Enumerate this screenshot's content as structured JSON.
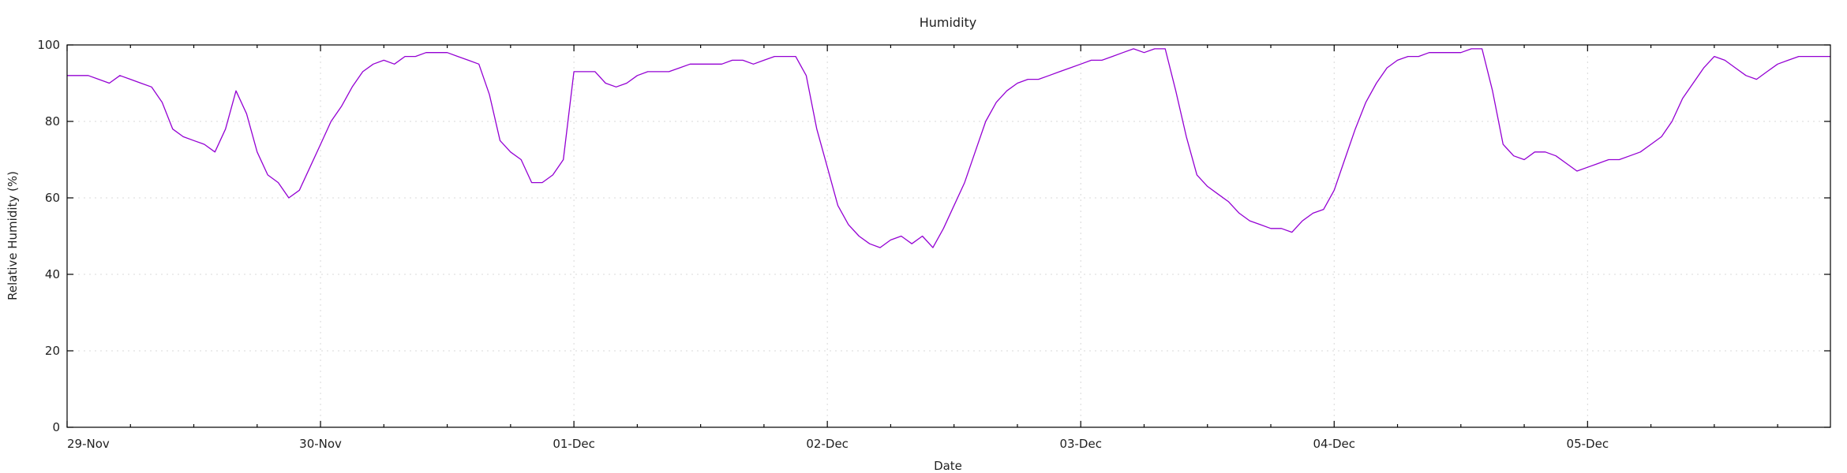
{
  "chart_data": {
    "type": "line",
    "title": "Humidity",
    "xlabel": "Date",
    "ylabel": "Relative Humidity (%)",
    "grid": true,
    "legend": "none",
    "line_color": "#9400d3",
    "ylim": [
      0,
      100
    ],
    "yticks": [
      0,
      20,
      40,
      60,
      80,
      100
    ],
    "xlim": [
      "29-Nov 00:00",
      "05-Dec 23:00"
    ],
    "xticks": [
      "29-Nov",
      "30-Nov",
      "01-Dec",
      "02-Dec",
      "03-Dec",
      "04-Dec",
      "05-Dec"
    ],
    "series": [
      {
        "x": [
          "29-Nov 00:00",
          "29-Nov 01:00",
          "29-Nov 02:00",
          "29-Nov 03:00",
          "29-Nov 04:00",
          "29-Nov 05:00",
          "29-Nov 06:00",
          "29-Nov 07:00",
          "29-Nov 08:00",
          "29-Nov 09:00",
          "29-Nov 10:00",
          "29-Nov 11:00",
          "29-Nov 12:00",
          "29-Nov 13:00",
          "29-Nov 14:00",
          "29-Nov 15:00",
          "29-Nov 16:00",
          "29-Nov 17:00",
          "29-Nov 18:00",
          "29-Nov 19:00",
          "29-Nov 20:00",
          "29-Nov 21:00",
          "29-Nov 22:00",
          "29-Nov 23:00",
          "30-Nov 00:00",
          "30-Nov 01:00",
          "30-Nov 02:00",
          "30-Nov 03:00",
          "30-Nov 04:00",
          "30-Nov 05:00",
          "30-Nov 06:00",
          "30-Nov 07:00",
          "30-Nov 08:00",
          "30-Nov 09:00",
          "30-Nov 10:00",
          "30-Nov 11:00",
          "30-Nov 12:00",
          "30-Nov 13:00",
          "30-Nov 14:00",
          "30-Nov 15:00",
          "30-Nov 16:00",
          "30-Nov 17:00",
          "30-Nov 18:00",
          "30-Nov 19:00",
          "30-Nov 20:00",
          "30-Nov 21:00",
          "30-Nov 22:00",
          "30-Nov 23:00",
          "01-Dec 00:00",
          "01-Dec 01:00",
          "01-Dec 02:00",
          "01-Dec 03:00",
          "01-Dec 04:00",
          "01-Dec 05:00",
          "01-Dec 06:00",
          "01-Dec 07:00",
          "01-Dec 08:00",
          "01-Dec 09:00",
          "01-Dec 10:00",
          "01-Dec 11:00",
          "01-Dec 12:00",
          "01-Dec 13:00",
          "01-Dec 14:00",
          "01-Dec 15:00",
          "01-Dec 16:00",
          "01-Dec 17:00",
          "01-Dec 18:00",
          "01-Dec 19:00",
          "01-Dec 20:00",
          "01-Dec 21:00",
          "01-Dec 22:00",
          "01-Dec 23:00",
          "02-Dec 00:00",
          "02-Dec 01:00",
          "02-Dec 02:00",
          "02-Dec 03:00",
          "02-Dec 04:00",
          "02-Dec 05:00",
          "02-Dec 06:00",
          "02-Dec 07:00",
          "02-Dec 08:00",
          "02-Dec 09:00",
          "02-Dec 10:00",
          "02-Dec 11:00",
          "02-Dec 12:00",
          "02-Dec 13:00",
          "02-Dec 14:00",
          "02-Dec 15:00",
          "02-Dec 16:00",
          "02-Dec 17:00",
          "02-Dec 18:00",
          "02-Dec 19:00",
          "02-Dec 20:00",
          "02-Dec 21:00",
          "02-Dec 22:00",
          "02-Dec 23:00",
          "03-Dec 00:00",
          "03-Dec 01:00",
          "03-Dec 02:00",
          "03-Dec 03:00",
          "03-Dec 04:00",
          "03-Dec 05:00",
          "03-Dec 06:00",
          "03-Dec 07:00",
          "03-Dec 08:00",
          "03-Dec 09:00",
          "03-Dec 10:00",
          "03-Dec 11:00",
          "03-Dec 12:00",
          "03-Dec 13:00",
          "03-Dec 14:00",
          "03-Dec 15:00",
          "03-Dec 16:00",
          "03-Dec 17:00",
          "03-Dec 18:00",
          "03-Dec 19:00",
          "03-Dec 20:00",
          "03-Dec 21:00",
          "03-Dec 22:00",
          "03-Dec 23:00",
          "04-Dec 00:00",
          "04-Dec 01:00",
          "04-Dec 02:00",
          "04-Dec 03:00",
          "04-Dec 04:00",
          "04-Dec 05:00",
          "04-Dec 06:00",
          "04-Dec 07:00",
          "04-Dec 08:00",
          "04-Dec 09:00",
          "04-Dec 10:00",
          "04-Dec 11:00",
          "04-Dec 12:00",
          "04-Dec 13:00",
          "04-Dec 14:00",
          "04-Dec 15:00",
          "04-Dec 16:00",
          "04-Dec 17:00",
          "04-Dec 18:00",
          "04-Dec 19:00",
          "04-Dec 20:00",
          "04-Dec 21:00",
          "04-Dec 22:00",
          "04-Dec 23:00",
          "05-Dec 00:00",
          "05-Dec 01:00",
          "05-Dec 02:00",
          "05-Dec 03:00",
          "05-Dec 04:00",
          "05-Dec 05:00",
          "05-Dec 06:00",
          "05-Dec 07:00",
          "05-Dec 08:00",
          "05-Dec 09:00",
          "05-Dec 10:00",
          "05-Dec 11:00",
          "05-Dec 12:00",
          "05-Dec 13:00",
          "05-Dec 14:00",
          "05-Dec 15:00",
          "05-Dec 16:00",
          "05-Dec 17:00",
          "05-Dec 18:00",
          "05-Dec 19:00",
          "05-Dec 20:00",
          "05-Dec 21:00",
          "05-Dec 22:00",
          "05-Dec 23:00"
        ],
        "values": [
          92,
          92,
          92,
          91,
          90,
          92,
          91,
          90,
          89,
          85,
          78,
          76,
          75,
          74,
          72,
          78,
          88,
          82,
          72,
          66,
          64,
          60,
          62,
          68,
          74,
          80,
          84,
          89,
          93,
          95,
          96,
          95,
          97,
          97,
          98,
          98,
          98,
          97,
          96,
          95,
          87,
          75,
          72,
          70,
          64,
          64,
          66,
          70,
          93,
          93,
          93,
          90,
          89,
          90,
          92,
          93,
          93,
          93,
          94,
          95,
          95,
          95,
          95,
          96,
          96,
          95,
          96,
          97,
          97,
          97,
          92,
          78,
          68,
          58,
          53,
          50,
          48,
          47,
          49,
          50,
          48,
          50,
          47,
          52,
          58,
          64,
          72,
          80,
          85,
          88,
          90,
          91,
          91,
          92,
          93,
          94,
          95,
          96,
          96,
          97,
          98,
          99,
          98,
          99,
          99,
          88,
          76,
          66,
          63,
          61,
          59,
          56,
          54,
          53,
          52,
          52,
          51,
          54,
          56,
          57,
          62,
          70,
          78,
          85,
          90,
          94,
          96,
          97,
          97,
          98,
          98,
          98,
          98,
          99,
          99,
          88,
          74,
          71,
          70,
          72,
          72,
          71,
          69,
          67,
          68,
          69,
          70,
          70,
          71,
          72,
          74,
          76,
          80,
          86,
          90,
          94,
          97,
          96,
          94,
          92,
          91,
          93,
          95,
          96,
          97,
          97,
          97,
          97
        ]
      }
    ]
  }
}
